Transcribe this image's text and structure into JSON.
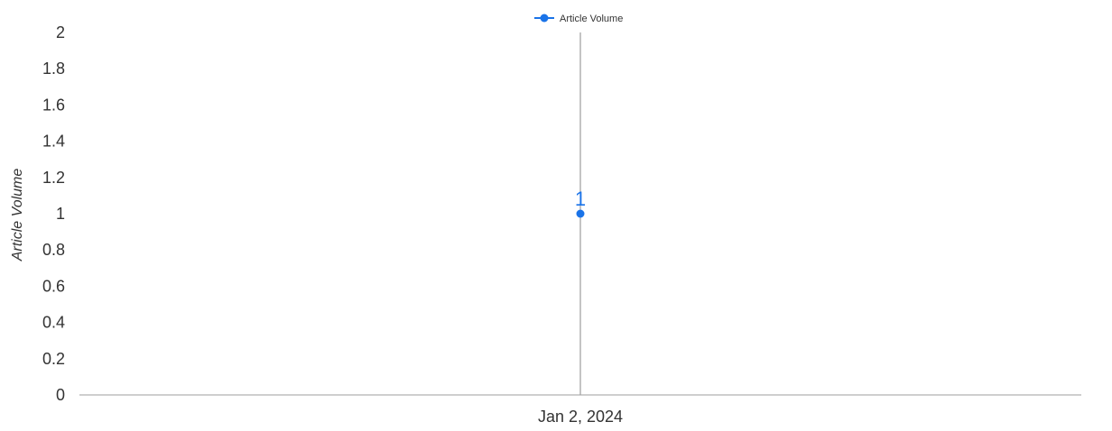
{
  "chart_data": {
    "type": "line",
    "x": [
      "Jan 2, 2024"
    ],
    "series": [
      {
        "name": "Article Volume",
        "values": [
          1
        ],
        "data_labels": [
          "1"
        ],
        "color": "#1a73e8"
      }
    ],
    "ylabel": "Article Volume",
    "xlabel": "",
    "ylim": [
      0,
      2
    ],
    "y_ticks": [
      "0",
      "0.2",
      "0.4",
      "0.6",
      "0.8",
      "1",
      "1.2",
      "1.4",
      "1.6",
      "1.8",
      "2"
    ],
    "legend_position": "top-center",
    "grid": false,
    "colors": {
      "series": "#1a73e8",
      "axis": "#9e9e9e",
      "crosshair": "#8a8a8a",
      "text": "#333333"
    }
  }
}
